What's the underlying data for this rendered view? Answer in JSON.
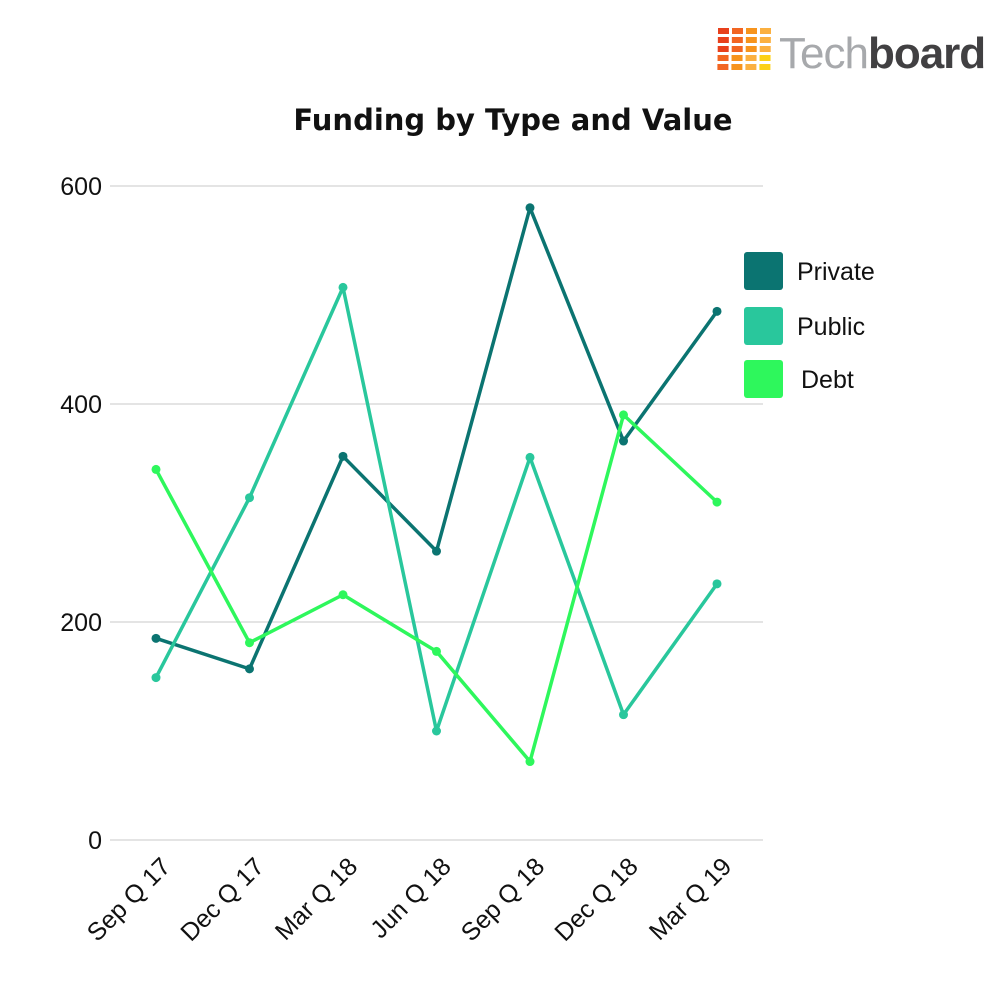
{
  "brand": {
    "name_light": "Tech",
    "name_dark": "board",
    "colors": [
      "#e8401c",
      "#f26522",
      "#f7941d",
      "#fbb040",
      "#fcd116"
    ]
  },
  "chart_data": {
    "type": "line",
    "title": "Funding by Type and Value",
    "xlabel": "",
    "ylabel": "",
    "categories": [
      "Sep Q 17",
      "Dec Q 17",
      "Mar Q 18",
      "Jun Q 18",
      "Sep Q 18",
      "Dec Q 18",
      "Mar Q 19"
    ],
    "ylim": [
      0,
      600
    ],
    "yticks": [
      0,
      200,
      400,
      600
    ],
    "grid": true,
    "legend_position": "right",
    "series": [
      {
        "name": "Private",
        "color": "#0b7471",
        "values": [
          185,
          157,
          352,
          265,
          580,
          366,
          485
        ]
      },
      {
        "name": "Public",
        "color": "#29c79c",
        "values": [
          149,
          314,
          507,
          100,
          351,
          115,
          235
        ]
      },
      {
        "name": "Debt",
        "color": "#2ef75c",
        "values": [
          340,
          181,
          225,
          173,
          72,
          390,
          310
        ]
      }
    ]
  }
}
